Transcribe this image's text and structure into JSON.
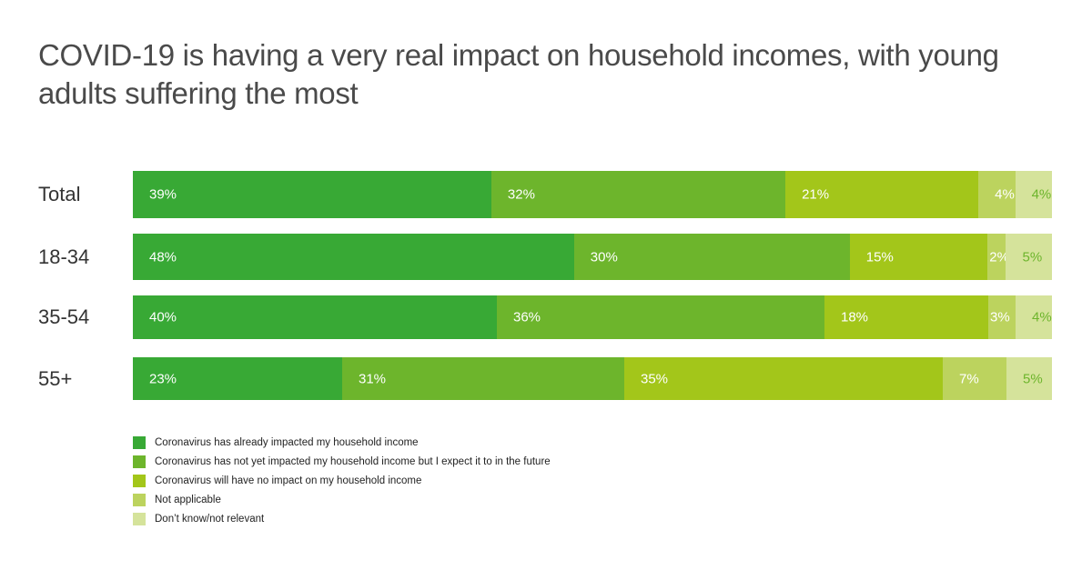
{
  "title": "COVID-19 is having a very real impact on household incomes, with young adults suffering the most",
  "chart_data": {
    "type": "bar",
    "orientation": "horizontal",
    "stacked": true,
    "title": "COVID-19 is having a very real impact on household incomes, with young adults suffering the most",
    "categories": [
      "Total",
      "18-34",
      "35-54",
      "55+"
    ],
    "series": [
      {
        "name": "Coronavirus has already impacted my household income",
        "color": "#38a935",
        "values": [
          39,
          48,
          40,
          23
        ]
      },
      {
        "name": "Coronavirus has not yet impacted my household income but I expect it to in the future",
        "color": "#6db52c",
        "values": [
          32,
          30,
          36,
          31
        ]
      },
      {
        "name": "Coronavirus will have no impact on my household income",
        "color": "#a3c61a",
        "values": [
          21,
          15,
          18,
          35
        ]
      },
      {
        "name": "Not applicable",
        "color": "#bcd35e",
        "values": [
          4,
          2,
          3,
          7
        ]
      },
      {
        "name": "Don’t know/not relevant",
        "color": "#d5e39b",
        "values": [
          4,
          5,
          4,
          5
        ]
      }
    ],
    "value_suffix": "%",
    "legend_position": "bottom-left",
    "grid": false
  }
}
